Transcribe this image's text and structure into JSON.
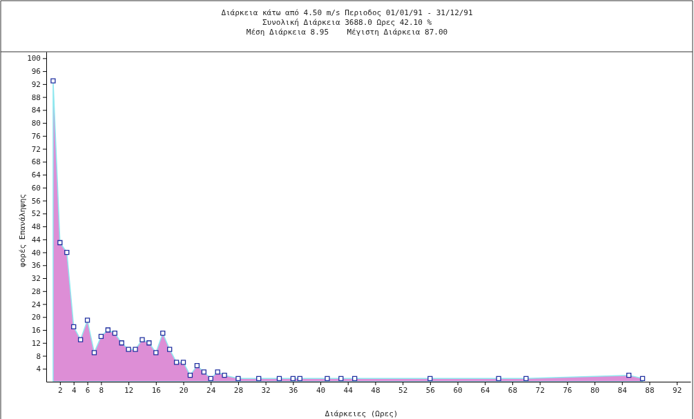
{
  "chart_data": {
    "type": "area",
    "title": "Διάρκεια κάτω από 4.50 m/s Περιοδος 01/01/91 - 31/12/91",
    "subtitle": "Συνολική Διάρκεια 3688.0 Ωρες 42.10 %\nΜέση Διάρκεια 8.95    Μέγιστη Διάρκεια 87.00",
    "xlabel": "Διάρκειες (Ωρες)",
    "ylabel": "φορές Επανάληψης",
    "x": [
      1,
      2,
      3,
      4,
      5,
      6,
      7,
      8,
      9,
      10,
      11,
      12,
      13,
      14,
      15,
      16,
      17,
      18,
      19,
      20,
      21,
      22,
      23,
      24,
      25,
      26,
      28,
      31,
      34,
      36,
      37,
      41,
      43,
      45,
      56,
      66,
      70,
      85,
      87
    ],
    "series": [
      {
        "color": "#dd8ed6",
        "values": [
          93,
          43,
          40,
          17,
          13,
          19,
          9,
          14,
          16,
          15,
          12,
          10,
          10,
          13,
          12,
          9,
          15,
          10,
          6,
          6,
          2,
          5,
          3,
          1,
          3,
          2,
          1,
          1,
          1,
          1,
          1,
          1,
          1,
          1,
          1,
          1,
          1,
          2,
          1
        ]
      }
    ],
    "xlim": [
      0,
      94
    ],
    "xticks": [
      2,
      4,
      6,
      8,
      12,
      16,
      20,
      24,
      28,
      32,
      36,
      40,
      44,
      48,
      52,
      56,
      60,
      64,
      68,
      72,
      76,
      80,
      84,
      88,
      92
    ],
    "ylim": [
      0,
      102
    ],
    "yticks": [
      4,
      8,
      12,
      16,
      20,
      24,
      28,
      32,
      36,
      40,
      44,
      48,
      52,
      56,
      60,
      64,
      68,
      72,
      76,
      80,
      84,
      88,
      92,
      96,
      100
    ],
    "marker": "square",
    "grid": false
  }
}
